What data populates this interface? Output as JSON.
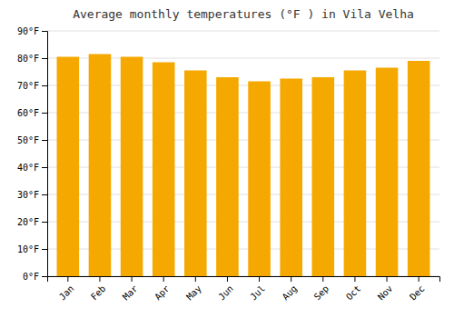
{
  "chart_data": {
    "type": "bar",
    "title": "Average monthly temperatures (°F ) in Vila Velha",
    "categories": [
      "Jan",
      "Feb",
      "Mar",
      "Apr",
      "May",
      "Jun",
      "Jul",
      "Aug",
      "Sep",
      "Oct",
      "Nov",
      "Dec"
    ],
    "values": [
      80.5,
      81.5,
      80.5,
      78.5,
      75.5,
      73,
      71.5,
      72.5,
      73,
      75.5,
      76.5,
      79
    ],
    "color": "#F5A800",
    "ylim": [
      0,
      90
    ],
    "yticks": [
      {
        "value": 0,
        "label": "0°F"
      },
      {
        "value": 10,
        "label": "10°F"
      },
      {
        "value": 20,
        "label": "20°F"
      },
      {
        "value": 30,
        "label": "30°F"
      },
      {
        "value": 40,
        "label": "40°F"
      },
      {
        "value": 50,
        "label": "50°F"
      },
      {
        "value": 60,
        "label": "60°F"
      },
      {
        "value": 70,
        "label": "70°F"
      },
      {
        "value": 80,
        "label": "80°F"
      },
      {
        "value": 90,
        "label": "90°F"
      }
    ],
    "grid": true
  }
}
